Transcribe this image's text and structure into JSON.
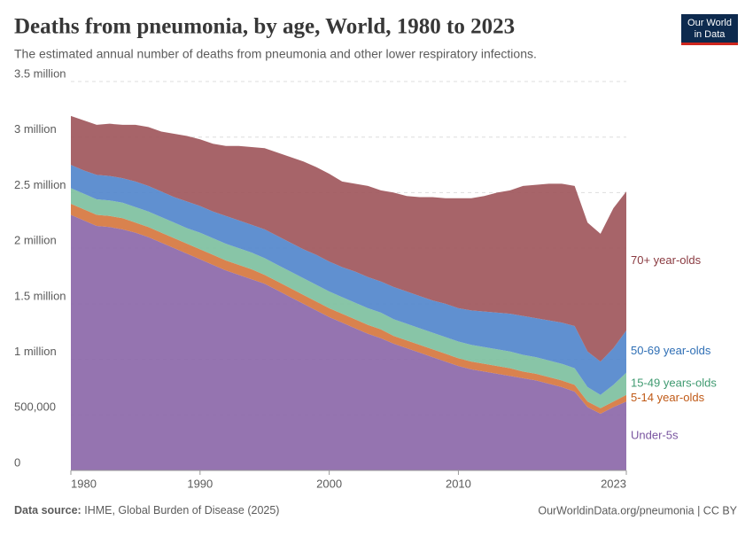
{
  "chart_data": {
    "type": "stacked-area",
    "title": "Deaths from pneumonia, by age, World, 1980 to 2023",
    "subtitle": "The estimated annual number of deaths from pneumonia and other lower respiratory infections.",
    "source_label": "Data source:",
    "source": "IHME, Global Burden of Disease (2025)",
    "url": "OurWorldinData.org/pneumonia | CC BY",
    "logo": [
      "Our World",
      "in Data"
    ],
    "x": [
      1980,
      1981,
      1982,
      1983,
      1984,
      1985,
      1986,
      1987,
      1988,
      1989,
      1990,
      1991,
      1992,
      1993,
      1994,
      1995,
      1996,
      1997,
      1998,
      1999,
      2000,
      2001,
      2002,
      2003,
      2004,
      2005,
      2006,
      2007,
      2008,
      2009,
      2010,
      2011,
      2012,
      2013,
      2014,
      2015,
      2016,
      2017,
      2018,
      2019,
      2020,
      2021,
      2022,
      2023
    ],
    "xlim": [
      1980,
      2023
    ],
    "xticks": [
      1980,
      1990,
      2000,
      2010,
      2023
    ],
    "ylim": [
      0,
      3500000
    ],
    "yticks": [
      0,
      {
        "value": 500000,
        "label": "500,000"
      },
      {
        "value": 1000000,
        "label": "1 million"
      },
      {
        "value": 1500000,
        "label": "1.5 million"
      },
      {
        "value": 2000000,
        "label": "2 million"
      },
      {
        "value": 2500000,
        "label": "2.5 million"
      },
      {
        "value": 3000000,
        "label": "3 million"
      },
      {
        "value": 3500000,
        "label": "3.5 million"
      }
    ],
    "grid": true,
    "series": [
      {
        "name": "Under-5s",
        "color": "#8c68a9",
        "label_color": "#7a55a0",
        "values": [
          2300000,
          2250000,
          2200000,
          2190000,
          2170000,
          2140000,
          2100000,
          2050000,
          2000000,
          1950000,
          1900000,
          1850000,
          1800000,
          1760000,
          1720000,
          1680000,
          1620000,
          1560000,
          1500000,
          1440000,
          1380000,
          1330000,
          1280000,
          1230000,
          1190000,
          1140000,
          1100000,
          1060000,
          1020000,
          980000,
          940000,
          910000,
          890000,
          870000,
          850000,
          830000,
          810000,
          780000,
          750000,
          710000,
          570000,
          510000,
          570000,
          620000
        ]
      },
      {
        "name": "5-14 year-olds",
        "color": "#d6773f",
        "label_color": "#c05a17",
        "values": [
          100000,
          100000,
          100000,
          100000,
          100000,
          90000,
          90000,
          90000,
          90000,
          90000,
          90000,
          90000,
          90000,
          90000,
          90000,
          80000,
          80000,
          80000,
          80000,
          80000,
          80000,
          80000,
          80000,
          80000,
          80000,
          70000,
          70000,
          70000,
          70000,
          70000,
          70000,
          70000,
          70000,
          70000,
          70000,
          60000,
          60000,
          60000,
          60000,
          60000,
          50000,
          50000,
          50000,
          60000
        ]
      },
      {
        "name": "15-49 years-olds",
        "color": "#7ec0a0",
        "label_color": "#3f9a70",
        "values": [
          140000,
          140000,
          140000,
          140000,
          140000,
          140000,
          140000,
          140000,
          140000,
          140000,
          150000,
          150000,
          150000,
          150000,
          150000,
          150000,
          150000,
          150000,
          150000,
          150000,
          150000,
          150000,
          150000,
          150000,
          150000,
          150000,
          150000,
          150000,
          150000,
          150000,
          150000,
          150000,
          150000,
          150000,
          150000,
          150000,
          150000,
          150000,
          150000,
          150000,
          130000,
          120000,
          150000,
          200000
        ]
      },
      {
        "name": "50-69 year-olds",
        "color": "#5287cc",
        "label_color": "#2f6fb5",
        "values": [
          210000,
          210000,
          220000,
          220000,
          220000,
          230000,
          230000,
          230000,
          230000,
          240000,
          240000,
          240000,
          250000,
          250000,
          250000,
          260000,
          260000,
          260000,
          260000,
          270000,
          270000,
          270000,
          280000,
          280000,
          280000,
          290000,
          290000,
          290000,
          290000,
          300000,
          300000,
          310000,
          320000,
          330000,
          340000,
          350000,
          350000,
          360000,
          370000,
          380000,
          320000,
          300000,
          330000,
          380000
        ]
      },
      {
        "name": "70+ year-olds",
        "color": "#a0575c",
        "label_color": "#8a3a40",
        "values": [
          440000,
          450000,
          450000,
          470000,
          480000,
          510000,
          530000,
          540000,
          570000,
          590000,
          600000,
          610000,
          630000,
          670000,
          700000,
          730000,
          750000,
          770000,
          790000,
          790000,
          790000,
          770000,
          790000,
          820000,
          820000,
          850000,
          860000,
          890000,
          930000,
          950000,
          990000,
          1010000,
          1040000,
          1080000,
          1110000,
          1170000,
          1200000,
          1230000,
          1250000,
          1260000,
          1160000,
          1150000,
          1260000,
          1250000
        ]
      }
    ]
  }
}
